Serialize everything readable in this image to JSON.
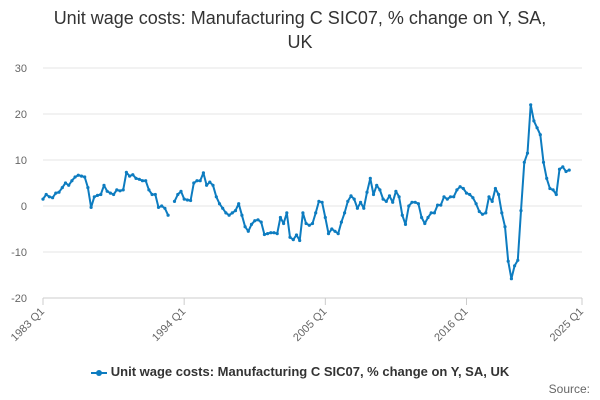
{
  "chart_data": {
    "type": "line",
    "title": "Unit wage costs: Manufacturing C SIC07, % change on Y, SA, UK",
    "xlabel": "",
    "ylabel": "",
    "ylim": [
      -20,
      30
    ],
    "yticks": [
      30,
      20,
      10,
      0,
      -10,
      -20
    ],
    "xlim": [
      1983.0,
      2025.0
    ],
    "xticks": [
      {
        "value": 1983.0,
        "label": "1983 Q1"
      },
      {
        "value": 1994.0,
        "label": "1994 Q1"
      },
      {
        "value": 2005.0,
        "label": "2005 Q1"
      },
      {
        "value": 2016.0,
        "label": "2016 Q1"
      },
      {
        "value": 2025.0,
        "label": "2025 Q1"
      }
    ],
    "series": [
      {
        "name": "Unit wage costs: Manufacturing C SIC07, % change on Y, SA, UK",
        "color": "#0d7cc0",
        "segments": [
          [
            [
              1983.0,
              1.5
            ],
            [
              1983.25,
              2.5
            ],
            [
              1983.5,
              2.0
            ],
            [
              1983.75,
              1.8
            ],
            [
              1984.0,
              2.8
            ],
            [
              1984.25,
              3.0
            ],
            [
              1984.5,
              4.0
            ],
            [
              1984.75,
              5.0
            ],
            [
              1985.0,
              4.5
            ],
            [
              1985.25,
              5.5
            ],
            [
              1985.5,
              6.3
            ],
            [
              1985.75,
              6.7
            ],
            [
              1986.0,
              6.5
            ],
            [
              1986.25,
              6.3
            ],
            [
              1986.5,
              4.0
            ],
            [
              1986.75,
              -0.3
            ],
            [
              1987.0,
              2.0
            ],
            [
              1987.25,
              2.3
            ],
            [
              1987.5,
              2.5
            ],
            [
              1987.75,
              4.5
            ],
            [
              1988.0,
              3.2
            ],
            [
              1988.25,
              2.8
            ],
            [
              1988.5,
              2.5
            ],
            [
              1988.75,
              3.5
            ],
            [
              1989.0,
              3.3
            ],
            [
              1989.25,
              3.5
            ],
            [
              1989.5,
              7.3
            ],
            [
              1989.75,
              6.5
            ],
            [
              1990.0,
              6.8
            ],
            [
              1990.25,
              6.0
            ],
            [
              1990.5,
              5.8
            ],
            [
              1990.75,
              5.5
            ],
            [
              1991.0,
              5.5
            ],
            [
              1991.25,
              3.5
            ],
            [
              1991.5,
              2.5
            ],
            [
              1991.75,
              2.5
            ],
            [
              1992.0,
              -0.3
            ],
            [
              1992.25,
              0.0
            ],
            [
              1992.5,
              -0.5
            ],
            [
              1992.75,
              -2.0
            ]
          ],
          [
            [
              1993.25,
              1.0
            ],
            [
              1993.5,
              2.5
            ],
            [
              1993.75,
              3.2
            ],
            [
              1994.0,
              1.5
            ],
            [
              1994.25,
              1.3
            ],
            [
              1994.5,
              1.2
            ],
            [
              1994.75,
              5.0
            ],
            [
              1995.0,
              5.5
            ],
            [
              1995.25,
              5.5
            ],
            [
              1995.5,
              7.2
            ],
            [
              1995.75,
              4.5
            ],
            [
              1996.0,
              5.2
            ],
            [
              1996.25,
              4.5
            ],
            [
              1996.5,
              2.0
            ],
            [
              1996.75,
              0.5
            ],
            [
              1997.0,
              -0.5
            ],
            [
              1997.25,
              -1.5
            ],
            [
              1997.5,
              -2.0
            ],
            [
              1997.75,
              -1.5
            ],
            [
              1998.0,
              -1.0
            ],
            [
              1998.25,
              0.5
            ],
            [
              1998.5,
              -2.0
            ],
            [
              1998.75,
              -4.5
            ],
            [
              1999.0,
              -5.5
            ],
            [
              1999.25,
              -4.0
            ],
            [
              1999.5,
              -3.2
            ],
            [
              1999.75,
              -3.0
            ],
            [
              2000.0,
              -3.5
            ],
            [
              2000.25,
              -6.2
            ],
            [
              2000.5,
              -6.0
            ],
            [
              2000.75,
              -5.8
            ],
            [
              2001.0,
              -5.8
            ],
            [
              2001.25,
              -6.0
            ],
            [
              2001.5,
              -2.5
            ],
            [
              2001.75,
              -3.8
            ],
            [
              2002.0,
              -1.5
            ],
            [
              2002.25,
              -6.8
            ],
            [
              2002.5,
              -7.3
            ],
            [
              2002.75,
              -6.3
            ],
            [
              2003.0,
              -7.5
            ],
            [
              2003.25,
              -1.5
            ],
            [
              2003.5,
              -3.8
            ],
            [
              2003.75,
              -4.2
            ],
            [
              2004.0,
              -3.8
            ],
            [
              2004.25,
              -1.5
            ],
            [
              2004.5,
              1.0
            ],
            [
              2004.75,
              0.8
            ],
            [
              2005.0,
              -2.5
            ],
            [
              2005.25,
              -6.0
            ],
            [
              2005.5,
              -5.0
            ],
            [
              2005.75,
              -5.5
            ],
            [
              2006.0,
              -6.0
            ],
            [
              2006.25,
              -3.5
            ],
            [
              2006.5,
              -1.5
            ],
            [
              2006.75,
              1.0
            ],
            [
              2007.0,
              2.2
            ],
            [
              2007.25,
              1.5
            ],
            [
              2007.5,
              -0.5
            ],
            [
              2007.75,
              0.8
            ],
            [
              2008.0,
              -0.5
            ],
            [
              2008.25,
              3.0
            ],
            [
              2008.5,
              6.0
            ],
            [
              2008.75,
              2.5
            ],
            [
              2009.0,
              4.5
            ],
            [
              2009.25,
              3.5
            ],
            [
              2009.5,
              1.5
            ],
            [
              2009.75,
              1.0
            ],
            [
              2010.0,
              2.2
            ],
            [
              2010.25,
              0.8
            ],
            [
              2010.5,
              3.2
            ],
            [
              2010.75,
              2.0
            ],
            [
              2011.0,
              -2.0
            ],
            [
              2011.25,
              -4.0
            ],
            [
              2011.5,
              0.0
            ],
            [
              2011.75,
              0.8
            ],
            [
              2012.0,
              0.8
            ],
            [
              2012.25,
              0.5
            ],
            [
              2012.5,
              -2.5
            ],
            [
              2012.75,
              -3.8
            ],
            [
              2013.0,
              -2.5
            ],
            [
              2013.25,
              -1.5
            ],
            [
              2013.5,
              -1.5
            ],
            [
              2013.75,
              0.2
            ],
            [
              2014.0,
              0.2
            ],
            [
              2014.25,
              2.0
            ],
            [
              2014.5,
              1.5
            ],
            [
              2014.75,
              2.0
            ],
            [
              2015.0,
              2.0
            ],
            [
              2015.25,
              3.5
            ],
            [
              2015.5,
              4.2
            ],
            [
              2015.75,
              3.8
            ],
            [
              2016.0,
              2.8
            ],
            [
              2016.25,
              2.5
            ],
            [
              2016.5,
              1.8
            ],
            [
              2016.75,
              0.5
            ],
            [
              2017.0,
              -1.2
            ],
            [
              2017.25,
              -1.8
            ],
            [
              2017.5,
              -1.5
            ],
            [
              2017.75,
              2.0
            ],
            [
              2018.0,
              1.0
            ],
            [
              2018.25,
              3.8
            ],
            [
              2018.5,
              2.5
            ],
            [
              2018.75,
              -1.5
            ],
            [
              2019.0,
              -4.5
            ],
            [
              2019.25,
              -12.0
            ],
            [
              2019.5,
              -15.8
            ],
            [
              2019.75,
              -13.0
            ],
            [
              2020.0,
              -11.8
            ],
            [
              2020.25,
              -1.0
            ],
            [
              2020.5,
              9.5
            ],
            [
              2020.75,
              11.5
            ],
            [
              2021.0,
              22.0
            ],
            [
              2021.25,
              18.5
            ],
            [
              2021.5,
              17.0
            ],
            [
              2021.75,
              15.5
            ],
            [
              2022.0,
              9.5
            ],
            [
              2022.25,
              6.0
            ],
            [
              2022.5,
              3.8
            ],
            [
              2022.75,
              3.5
            ],
            [
              2023.0,
              2.5
            ],
            [
              2023.25,
              8.0
            ],
            [
              2023.5,
              8.5
            ],
            [
              2023.75,
              7.5
            ],
            [
              2024.0,
              7.8
            ]
          ]
        ]
      }
    ],
    "legend": "bottom-center"
  },
  "footer": {
    "source_label": "Source:"
  }
}
